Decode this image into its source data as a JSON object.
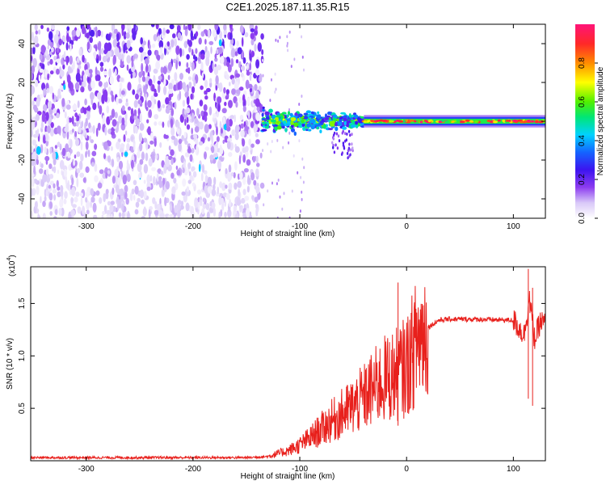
{
  "title": "C2E1.2025.187.11.35.R15",
  "chart_data": [
    {
      "type": "heatmap",
      "xlabel": "Height of straight line (km)",
      "ylabel": "Frequency (Hz)",
      "xlim": [
        -352,
        130
      ],
      "ylim": [
        -50,
        50
      ],
      "x_ticks": [
        -300,
        -200,
        -100,
        0,
        100
      ],
      "x_tick_labels": [
        "-300",
        "-200",
        "-100",
        "0",
        "100"
      ],
      "y_ticks": [
        -40,
        -20,
        0,
        20,
        40
      ],
      "y_tick_labels": [
        "-40",
        "-20",
        "0",
        "20",
        "40"
      ],
      "colorbar": {
        "label": "Normalized spectral amplitude",
        "range": [
          0,
          1
        ],
        "ticks": [
          0.0,
          0.2,
          0.4,
          0.6,
          0.8
        ],
        "tick_labels": [
          "0.0",
          "0.2",
          "0.4",
          "0.6",
          "0.8"
        ],
        "colors": [
          "#ffffff",
          "#d8c8f8",
          "#8c3cf0",
          "#3c14f0",
          "#1464ff",
          "#00d2ff",
          "#00e678",
          "#50f000",
          "#ffff00",
          "#ff8c00",
          "#ff2828",
          "#ff1478"
        ]
      },
      "regions": [
        {
          "x": [
            -352,
            -135
          ],
          "y": [
            -50,
            50
          ],
          "amplitude": [
            0.02,
            0.22
          ],
          "description_value": "broadband noise"
        },
        {
          "x": [
            -135,
            -40
          ],
          "y": [
            -8,
            8
          ],
          "amplitude": [
            0.2,
            0.75
          ]
        },
        {
          "x": [
            -40,
            130
          ],
          "y": [
            -2,
            2
          ],
          "amplitude": [
            0.5,
            1.0
          ]
        }
      ]
    },
    {
      "type": "line",
      "xlabel": "Height of straight line (km)",
      "ylabel": "SNR (10 * v/v)",
      "y_multiplier": "(x10",
      "y_multiplier_exp": "4",
      "y_multiplier_close": ")",
      "xlim": [
        -352,
        130
      ],
      "ylim": [
        0,
        18500
      ],
      "x_ticks": [
        -300,
        -200,
        -100,
        0,
        100
      ],
      "x_tick_labels": [
        "-300",
        "-200",
        "-100",
        "0",
        "100"
      ],
      "y_ticks": [
        5000,
        10000,
        15000
      ],
      "y_tick_labels": [
        "0.5",
        "1.0",
        "1.5"
      ],
      "line_color": "#e8201c",
      "series": [
        {
          "x": [
            -352,
            -300,
            -250,
            -200,
            -150,
            -130,
            -110,
            -100,
            -90,
            -80,
            -70,
            -60,
            -50,
            -40,
            -30,
            -20,
            -10,
            0,
            10,
            20,
            30,
            40,
            60,
            80,
            100,
            110,
            115,
            120,
            125,
            130
          ],
          "y": [
            300,
            300,
            300,
            300,
            300,
            400,
            1000,
            1500,
            2200,
            3000,
            3800,
            4500,
            5200,
            6000,
            7000,
            7800,
            8200,
            9000,
            11500,
            12700,
            13400,
            13500,
            13500,
            13450,
            13400,
            12000,
            15500,
            11500,
            13200,
            13100
          ]
        }
      ],
      "spikes": [
        {
          "x": -8,
          "y": 17000
        },
        {
          "x": 114,
          "y": 18300
        },
        {
          "x": 118,
          "y": 16500
        }
      ]
    }
  ]
}
